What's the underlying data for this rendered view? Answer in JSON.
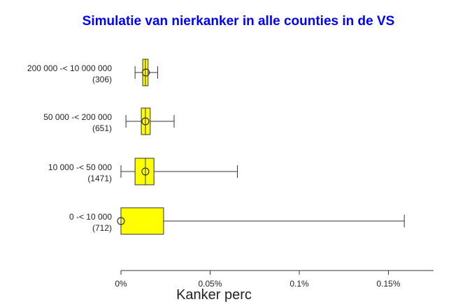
{
  "chart_data": {
    "type": "boxplot",
    "orientation": "horizontal",
    "title": "Simulatie van nierkanker in alle counties in de VS",
    "xlabel": "Kanker perc",
    "ylabel": "",
    "xlim": [
      0,
      0.175
    ],
    "x_ticks": [
      {
        "value": 0,
        "label": "0%"
      },
      {
        "value": 0.05,
        "label": "0.05%"
      },
      {
        "value": 0.1,
        "label": "0.1%"
      },
      {
        "value": 0.15,
        "label": "0.15%"
      }
    ],
    "grid": false,
    "categories": [
      {
        "label": "200 000 -< 10 000 000",
        "count": "(306)",
        "whisker_low": 0.0079,
        "q1": 0.0122,
        "median": 0.0137,
        "q3": 0.0152,
        "whisker_high": 0.0206,
        "mean": 0.014
      },
      {
        "label": "50 000 -< 200 000",
        "count": "(651)",
        "whisker_low": 0.0028,
        "q1": 0.0114,
        "median": 0.0137,
        "q3": 0.0164,
        "whisker_high": 0.0298,
        "mean": 0.0137
      },
      {
        "label": "10 000 -< 50 000",
        "count": "(1471)",
        "whisker_low": 0.0,
        "q1": 0.0079,
        "median": 0.0137,
        "q3": 0.0185,
        "whisker_high": 0.0653,
        "mean": 0.0137
      },
      {
        "label": "0 -< 10 000",
        "count": "(712)",
        "whisker_low": 0.0,
        "q1": 0.0,
        "median": 0.0,
        "q3": 0.0239,
        "whisker_high": 0.1589,
        "mean": 0.0
      }
    ],
    "colors": {
      "title": "#0000ff",
      "box_fill": "#ffff00",
      "stroke": "#333333"
    }
  }
}
